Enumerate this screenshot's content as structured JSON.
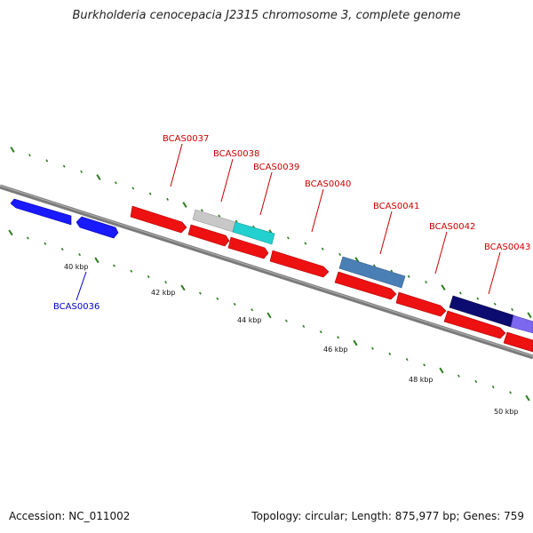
{
  "title": "Burkholderia cenocepacia J2315 chromosome 3, complete genome",
  "footer": {
    "accession": "Accession: NC_011002",
    "topology": "Topology: circular; Length: 875,977 bp; Genes: 759"
  },
  "colors": {
    "backbone": "#808080",
    "tick": "#2e7d1f",
    "gene_label": "#cc0000",
    "highlight_label": "#0000cc"
  },
  "scale_labels": [
    "40 kbp",
    "42 kbp",
    "44 kbp",
    "46 kbp",
    "48 kbp",
    "50 kbp"
  ],
  "gene_labels": [
    {
      "id": "BCAS0036",
      "color": "#0000cc"
    },
    {
      "id": "BCAS0037",
      "color": "#cc0000"
    },
    {
      "id": "BCAS0038",
      "color": "#cc0000"
    },
    {
      "id": "BCAS0039",
      "color": "#cc0000"
    },
    {
      "id": "BCAS0040",
      "color": "#cc0000"
    },
    {
      "id": "BCAS0041",
      "color": "#cc0000"
    },
    {
      "id": "BCAS0042",
      "color": "#cc0000"
    },
    {
      "id": "BCAS0043",
      "color": "#cc0000"
    }
  ]
}
